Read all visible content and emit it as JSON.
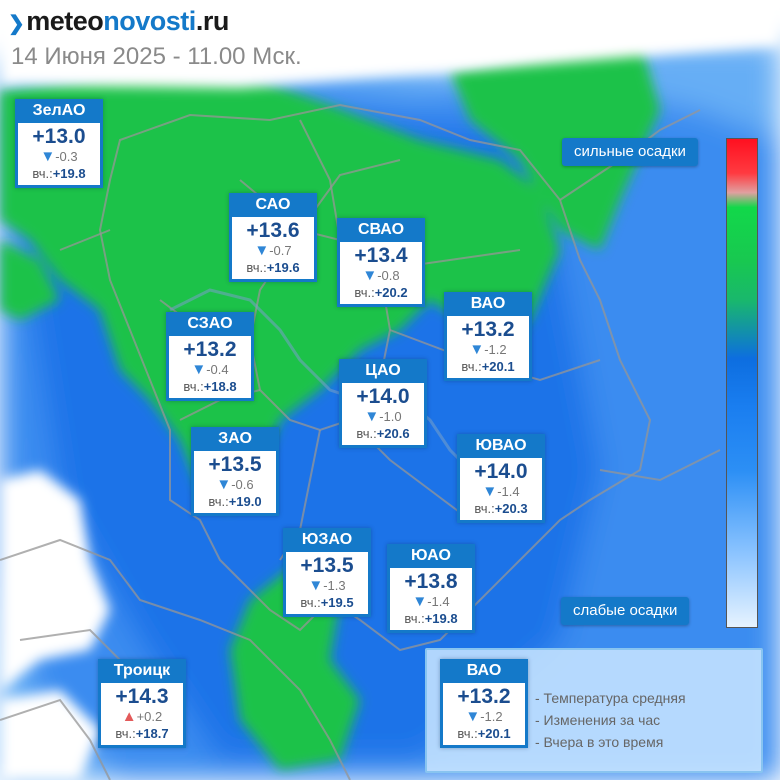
{
  "header": {
    "logo_part1": "meteo",
    "logo_part2": "novosti",
    "logo_part3": ".ru",
    "datetime": "14 Июня 2025 - 11.00 Мск."
  },
  "prefix_yesterday": "вч.:",
  "districts": [
    {
      "name": "ЗелАО",
      "temp": "+13.0",
      "trend": "down",
      "change": "-0.3",
      "yesterday": "+19.8"
    },
    {
      "name": "САО",
      "temp": "+13.6",
      "trend": "down",
      "change": "-0.7",
      "yesterday": "+19.6"
    },
    {
      "name": "СВАО",
      "temp": "+13.4",
      "trend": "down",
      "change": "-0.8",
      "yesterday": "+20.2"
    },
    {
      "name": "ВАО",
      "temp": "+13.2",
      "trend": "down",
      "change": "-1.2",
      "yesterday": "+20.1"
    },
    {
      "name": "СЗАО",
      "temp": "+13.2",
      "trend": "down",
      "change": "-0.4",
      "yesterday": "+18.8"
    },
    {
      "name": "ЦАО",
      "temp": "+14.0",
      "trend": "down",
      "change": "-1.0",
      "yesterday": "+20.6"
    },
    {
      "name": "ЗАО",
      "temp": "+13.5",
      "trend": "down",
      "change": "-0.6",
      "yesterday": "+19.0"
    },
    {
      "name": "ЮВАО",
      "temp": "+14.0",
      "trend": "down",
      "change": "-1.4",
      "yesterday": "+20.3"
    },
    {
      "name": "ЮЗАО",
      "temp": "+13.5",
      "trend": "down",
      "change": "-1.3",
      "yesterday": "+19.5"
    },
    {
      "name": "ЮАО",
      "temp": "+13.8",
      "trend": "down",
      "change": "-1.4",
      "yesterday": "+19.8"
    },
    {
      "name": "Троицк",
      "temp": "+14.3",
      "trend": "up",
      "change": "+0.2",
      "yesterday": "+18.7"
    }
  ],
  "legend": {
    "heavy": "сильные осадки",
    "light": "слабые осадки",
    "sample": {
      "name": "ВАО",
      "temp": "+13.2",
      "trend": "down",
      "change": "-1.2",
      "yesterday": "+20.1"
    },
    "line_temp": "- Температура средняя",
    "line_change": "- Изменения за час",
    "line_yesterday": "- Вчера в это время"
  },
  "colors": {
    "accent": "#1479c9",
    "green": "#1cc24a",
    "blue": "#1f73e8",
    "light_blue": "#5aa9f5"
  }
}
